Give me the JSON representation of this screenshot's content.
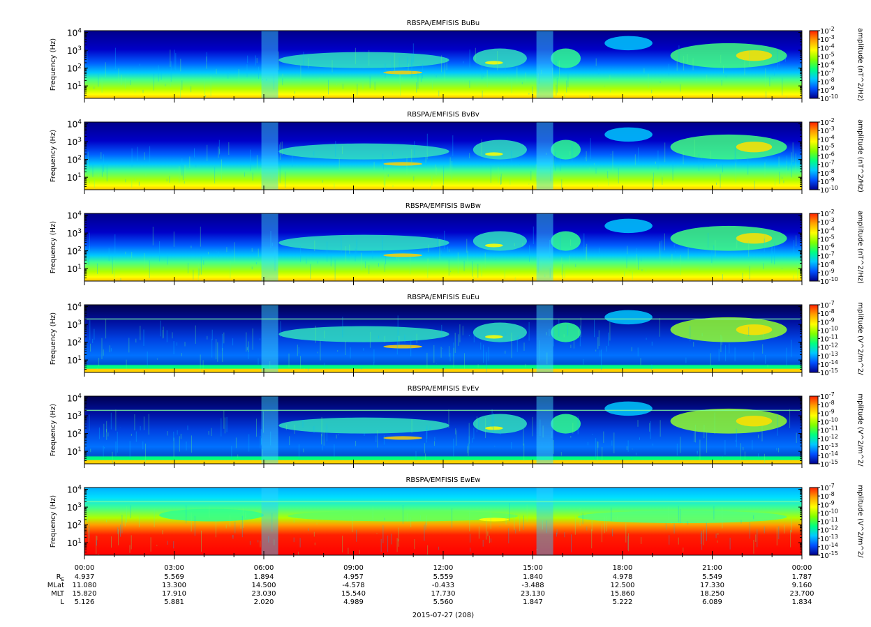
{
  "panels": [
    {
      "title": "RBSPA/EMFISIS  BuBu",
      "ylabel": "Frequency (Hz)",
      "cbar_label": "amplitude (nT^2/Hz)",
      "cbar_ticks": [
        "10",
        "10",
        "10",
        "10",
        "10",
        "10",
        "10",
        "10",
        "10"
      ],
      "cbar_exps": [
        "-2",
        "-3",
        "-4",
        "-5",
        "-6",
        "-7",
        "-8",
        "-9",
        "-10"
      ],
      "kind": "B"
    },
    {
      "title": "RBSPA/EMFISIS  BvBv",
      "ylabel": "Frequency (Hz)",
      "cbar_label": "amplitude (nT^2/Hz)",
      "cbar_ticks": [
        "10",
        "10",
        "10",
        "10",
        "10",
        "10",
        "10",
        "10",
        "10"
      ],
      "cbar_exps": [
        "-2",
        "-3",
        "-4",
        "-5",
        "-6",
        "-7",
        "-8",
        "-9",
        "-10"
      ],
      "kind": "B"
    },
    {
      "title": "RBSPA/EMFISIS  BwBw",
      "ylabel": "Frequency (Hz)",
      "cbar_label": "amplitude (nT^2/Hz)",
      "cbar_ticks": [
        "10",
        "10",
        "10",
        "10",
        "10",
        "10",
        "10",
        "10",
        "10"
      ],
      "cbar_exps": [
        "-2",
        "-3",
        "-4",
        "-5",
        "-6",
        "-7",
        "-8",
        "-9",
        "-10"
      ],
      "kind": "B"
    },
    {
      "title": "RBSPA/EMFISIS  EuEu",
      "ylabel": "Frequency (Hz)",
      "cbar_label": "mplitude (V^2/m^2/",
      "cbar_ticks": [
        "10",
        "10",
        "10",
        "10",
        "10",
        "10",
        "10",
        "10",
        "10"
      ],
      "cbar_exps": [
        "-7",
        "-8",
        "-9",
        "-10",
        "-11",
        "-12",
        "-13",
        "-14",
        "-15"
      ],
      "kind": "E"
    },
    {
      "title": "RBSPA/EMFISIS  EvEv",
      "ylabel": "Frequency (Hz)",
      "cbar_label": "mplitude (V^2/m^2/",
      "cbar_ticks": [
        "10",
        "10",
        "10",
        "10",
        "10",
        "10",
        "10",
        "10",
        "10"
      ],
      "cbar_exps": [
        "-7",
        "-8",
        "-9",
        "-10",
        "-11",
        "-12",
        "-13",
        "-14",
        "-15"
      ],
      "kind": "E"
    },
    {
      "title": "RBSPA/EMFISIS  EwEw",
      "ylabel": "Frequency (Hz)",
      "cbar_label": "mplitude (V^2/m^2/",
      "cbar_ticks": [
        "10",
        "10",
        "10",
        "10",
        "10",
        "10",
        "10",
        "10",
        "10"
      ],
      "cbar_exps": [
        "-7",
        "-8",
        "-9",
        "-10",
        "-11",
        "-12",
        "-13",
        "-14",
        "-15"
      ],
      "kind": "W"
    }
  ],
  "y_ticks": [
    {
      "base": "10",
      "exp": "4",
      "decade": 4
    },
    {
      "base": "10",
      "exp": "3",
      "decade": 3
    },
    {
      "base": "10",
      "exp": "2",
      "decade": 2
    },
    {
      "base": "10",
      "exp": "1",
      "decade": 1
    }
  ],
  "x_ticks": [
    "00:00",
    "03:00",
    "06:00",
    "09:00",
    "12:00",
    "15:00",
    "18:00",
    "21:00",
    "00:00"
  ],
  "ephemeris": [
    {
      "label": "R",
      "sub": "E",
      "values": [
        "4.937",
        "5.569",
        "1.894",
        "4.957",
        "5.559",
        "1.840",
        "4.978",
        "5.549",
        "1.787"
      ]
    },
    {
      "label": "MLat",
      "sub": "",
      "values": [
        "11.080",
        "13.300",
        "14.500",
        "-4.578",
        "-0.433",
        "-3.488",
        "12.500",
        "17.330",
        "9.160"
      ]
    },
    {
      "label": "MLT",
      "sub": "",
      "values": [
        "15.820",
        "17.910",
        "23.030",
        "15.540",
        "17.730",
        "23.130",
        "15.860",
        "18.250",
        "23.700"
      ]
    },
    {
      "label": "L",
      "sub": "",
      "values": [
        "5.126",
        "5.881",
        "2.020",
        "4.989",
        "5.560",
        "1.847",
        "5.222",
        "6.089",
        "1.834"
      ]
    }
  ],
  "date_label": "2015-07-27 (208)",
  "chart_data": {
    "type": "heatmap",
    "x_unit": "hours (UT)",
    "xlim": [
      0,
      24
    ],
    "ylim_log10_hz": [
      0.3,
      4.1
    ],
    "y_scale": "log",
    "colormap": [
      "#00008b",
      "#0050ff",
      "#00c8ff",
      "#00ff80",
      "#80ff00",
      "#ffff00",
      "#ffa000",
      "#ff2000"
    ],
    "series_names": [
      "BuBu",
      "BvBv",
      "BwBw",
      "EuEu",
      "EvEv",
      "EwEw"
    ]
  }
}
